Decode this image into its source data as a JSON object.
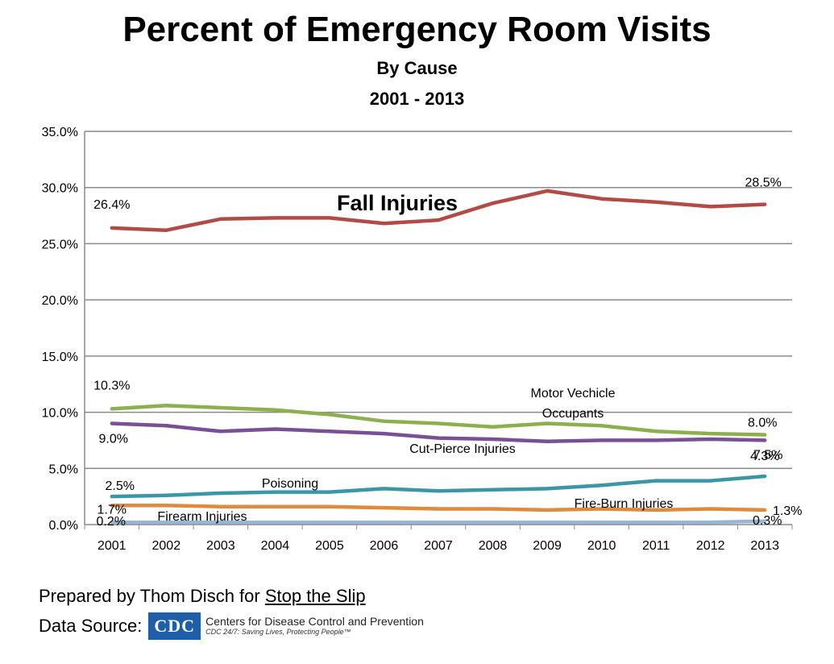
{
  "chart_data": {
    "type": "line",
    "title": "Percent of Emergency Room Visits",
    "subtitle": [
      "By Cause",
      "2001 - 2013"
    ],
    "categories": [
      "2001",
      "2002",
      "2003",
      "2004",
      "2005",
      "2006",
      "2007",
      "2008",
      "2009",
      "2010",
      "2011",
      "2012",
      "2013"
    ],
    "ylim": [
      0,
      35
    ],
    "yticks": [
      "0.0%",
      "5.0%",
      "10.0%",
      "15.0%",
      "20.0%",
      "25.0%",
      "30.0%",
      "35.0%"
    ],
    "ytick_values": [
      0,
      5,
      10,
      15,
      20,
      25,
      30,
      35
    ],
    "grid": true,
    "series": [
      {
        "name": "Fall Injuries",
        "color": "#b24a45",
        "values": [
          26.4,
          26.2,
          27.2,
          27.3,
          27.3,
          26.8,
          27.1,
          28.6,
          29.7,
          29.0,
          28.7,
          28.3,
          28.5
        ]
      },
      {
        "name": "Motor Vechicle Occupants",
        "color": "#8db04f",
        "values": [
          10.3,
          10.6,
          10.4,
          10.2,
          9.8,
          9.2,
          9.0,
          8.7,
          9.0,
          8.8,
          8.3,
          8.1,
          8.0
        ]
      },
      {
        "name": "Cut-Pierce Injuries",
        "color": "#7a4f95",
        "values": [
          9.0,
          8.8,
          8.3,
          8.5,
          8.3,
          8.1,
          7.7,
          7.6,
          7.4,
          7.5,
          7.5,
          7.6,
          7.5
        ]
      },
      {
        "name": "Poisoning",
        "color": "#3b97a8",
        "values": [
          2.5,
          2.6,
          2.8,
          2.9,
          2.9,
          3.2,
          3.0,
          3.1,
          3.2,
          3.5,
          3.9,
          3.9,
          4.3
        ]
      },
      {
        "name": "Fire-Burn Injuries",
        "color": "#e08a3e",
        "values": [
          1.7,
          1.7,
          1.6,
          1.6,
          1.6,
          1.5,
          1.4,
          1.4,
          1.3,
          1.4,
          1.3,
          1.4,
          1.3
        ]
      },
      {
        "name": "Firearm Injuries",
        "color": "#98b4d6",
        "values": [
          0.2,
          0.2,
          0.2,
          0.2,
          0.2,
          0.2,
          0.2,
          0.2,
          0.2,
          0.2,
          0.2,
          0.2,
          0.3
        ]
      }
    ],
    "data_labels": [
      {
        "text": "26.4%",
        "series": 0,
        "index": 0
      },
      {
        "text": "28.5%",
        "series": 0,
        "index": 12
      },
      {
        "text": "10.3%",
        "series": 1,
        "index": 0
      },
      {
        "text": "8.0%",
        "series": 1,
        "index": 12
      },
      {
        "text": "9.0%",
        "series": 2,
        "index": 0
      },
      {
        "text": "7.5%",
        "series": 2,
        "index": 12
      },
      {
        "text": "2.5%",
        "series": 3,
        "index": 0
      },
      {
        "text": "4.3%",
        "series": 3,
        "index": 12
      },
      {
        "text": "1.7%",
        "series": 4,
        "index": 0
      },
      {
        "text": "1.3%",
        "series": 4,
        "index": 12
      },
      {
        "text": "0.2%",
        "series": 5,
        "index": 0
      },
      {
        "text": "0.3%",
        "series": 5,
        "index": 12
      }
    ],
    "series_labels": [
      {
        "text": "Fall Injuries",
        "bold": true
      },
      {
        "text": "Motor Vechicle",
        "bold": false
      },
      {
        "text": "Occupants",
        "bold": false
      },
      {
        "text": "Cut-Pierce Injuries",
        "bold": false
      },
      {
        "text": "Poisoning",
        "bold": false
      },
      {
        "text": "Fire-Burn Injuries",
        "bold": false
      },
      {
        "text": "Firearm Injuries",
        "bold": false
      }
    ]
  },
  "footer": {
    "prepared_prefix": "Prepared by Thom Disch for ",
    "prepared_link": "Stop the Slip",
    "source_prefix": "Data Source: ",
    "cdc_abbrev": "CDC",
    "cdc_name": "Centers for Disease Control and Prevention",
    "cdc_tagline": "CDC 24/7: Saving Lives, Protecting People™"
  }
}
